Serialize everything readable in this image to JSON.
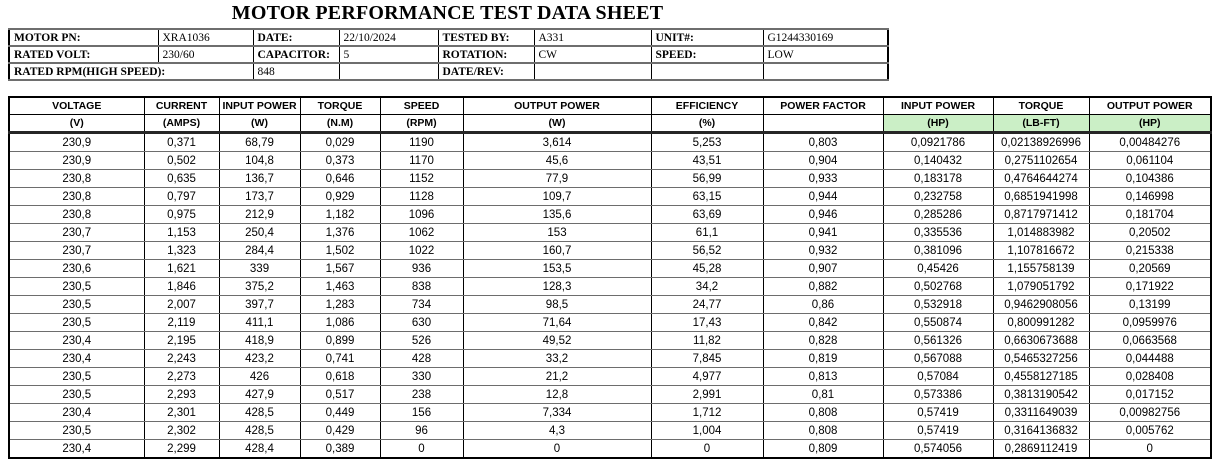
{
  "title": "MOTOR PERFORMANCE TEST DATA SHEET",
  "colors": {
    "unit_highlight": "#CBEFC6",
    "border": "#000000",
    "row_divider": "#6d6d6d"
  },
  "info_table": {
    "row1": {
      "c1": "MOTOR PN:",
      "c2": "XRA1036",
      "c3": "DATE:",
      "c4": "22/10/2024",
      "c5": "TESTED BY:",
      "c6": "A331",
      "c7": "UNIT#:",
      "c8": "G1244330169"
    },
    "row2": {
      "c1": "RATED VOLT:",
      "c2": "230/60",
      "c3": "CAPACITOR:",
      "c4": "5",
      "c5": "ROTATION:",
      "c6": "CW",
      "c7": "SPEED:",
      "c8": "LOW"
    },
    "row3": {
      "c1": "RATED RPM(HIGH SPEED):",
      "c2": "848",
      "c3": "",
      "c4": "DATE/REV:",
      "c5": "",
      "c6": "",
      "c7": ""
    }
  },
  "data_table": {
    "headers": [
      "VOLTAGE",
      "CURRENT",
      "INPUT POWER",
      "TORQUE",
      "SPEED",
      "OUTPUT POWER",
      "EFFICIENCY",
      "POWER FACTOR",
      "INPUT POWER",
      "TORQUE",
      "OUTPUT POWER"
    ],
    "units": [
      "(V)",
      "(AMPS)",
      "(W)",
      "(N.M)",
      "(RPM)",
      "(W)",
      "(%)",
      "",
      "(HP)",
      "(LB-FT)",
      "(HP)"
    ],
    "rows": [
      [
        "230,9",
        "0,371",
        "68,79",
        "0,029",
        "1190",
        "3,614",
        "5,253",
        "0,803",
        "0,0921786",
        "0,02138926996",
        "0,00484276"
      ],
      [
        "230,9",
        "0,502",
        "104,8",
        "0,373",
        "1170",
        "45,6",
        "43,51",
        "0,904",
        "0,140432",
        "0,2751102654",
        "0,061104"
      ],
      [
        "230,8",
        "0,635",
        "136,7",
        "0,646",
        "1152",
        "77,9",
        "56,99",
        "0,933",
        "0,183178",
        "0,4764644274",
        "0,104386"
      ],
      [
        "230,8",
        "0,797",
        "173,7",
        "0,929",
        "1128",
        "109,7",
        "63,15",
        "0,944",
        "0,232758",
        "0,6851941998",
        "0,146998"
      ],
      [
        "230,8",
        "0,975",
        "212,9",
        "1,182",
        "1096",
        "135,6",
        "63,69",
        "0,946",
        "0,285286",
        "0,8717971412",
        "0,181704"
      ],
      [
        "230,7",
        "1,153",
        "250,4",
        "1,376",
        "1062",
        "153",
        "61,1",
        "0,941",
        "0,335536",
        "1,014883982",
        "0,20502"
      ],
      [
        "230,7",
        "1,323",
        "284,4",
        "1,502",
        "1022",
        "160,7",
        "56,52",
        "0,932",
        "0,381096",
        "1,107816672",
        "0,215338"
      ],
      [
        "230,6",
        "1,621",
        "339",
        "1,567",
        "936",
        "153,5",
        "45,28",
        "0,907",
        "0,45426",
        "1,155758139",
        "0,20569"
      ],
      [
        "230,5",
        "1,846",
        "375,2",
        "1,463",
        "838",
        "128,3",
        "34,2",
        "0,882",
        "0,502768",
        "1,079051792",
        "0,171922"
      ],
      [
        "230,5",
        "2,007",
        "397,7",
        "1,283",
        "734",
        "98,5",
        "24,77",
        "0,86",
        "0,532918",
        "0,9462908056",
        "0,13199"
      ],
      [
        "230,5",
        "2,119",
        "411,1",
        "1,086",
        "630",
        "71,64",
        "17,43",
        "0,842",
        "0,550874",
        "0,800991282",
        "0,0959976"
      ],
      [
        "230,4",
        "2,195",
        "418,9",
        "0,899",
        "526",
        "49,52",
        "11,82",
        "0,828",
        "0,561326",
        "0,6630673688",
        "0,0663568"
      ],
      [
        "230,4",
        "2,243",
        "423,2",
        "0,741",
        "428",
        "33,2",
        "7,845",
        "0,819",
        "0,567088",
        "0,5465327256",
        "0,044488"
      ],
      [
        "230,5",
        "2,273",
        "426",
        "0,618",
        "330",
        "21,2",
        "4,977",
        "0,813",
        "0,57084",
        "0,4558127185",
        "0,028408"
      ],
      [
        "230,5",
        "2,293",
        "427,9",
        "0,517",
        "238",
        "12,8",
        "2,991",
        "0,81",
        "0,573386",
        "0,3813190542",
        "0,017152"
      ],
      [
        "230,4",
        "2,301",
        "428,5",
        "0,449",
        "156",
        "7,334",
        "1,712",
        "0,808",
        "0,57419",
        "0,3311649039",
        "0,00982756"
      ],
      [
        "230,5",
        "2,302",
        "428,5",
        "0,429",
        "96",
        "4,3",
        "1,004",
        "0,808",
        "0,57419",
        "0,3164136832",
        "0,005762"
      ],
      [
        "230,4",
        "2,299",
        "428,4",
        "0,389",
        "0",
        "0",
        "0",
        "0,809",
        "0,574056",
        "0,2869112419",
        "0"
      ]
    ]
  }
}
